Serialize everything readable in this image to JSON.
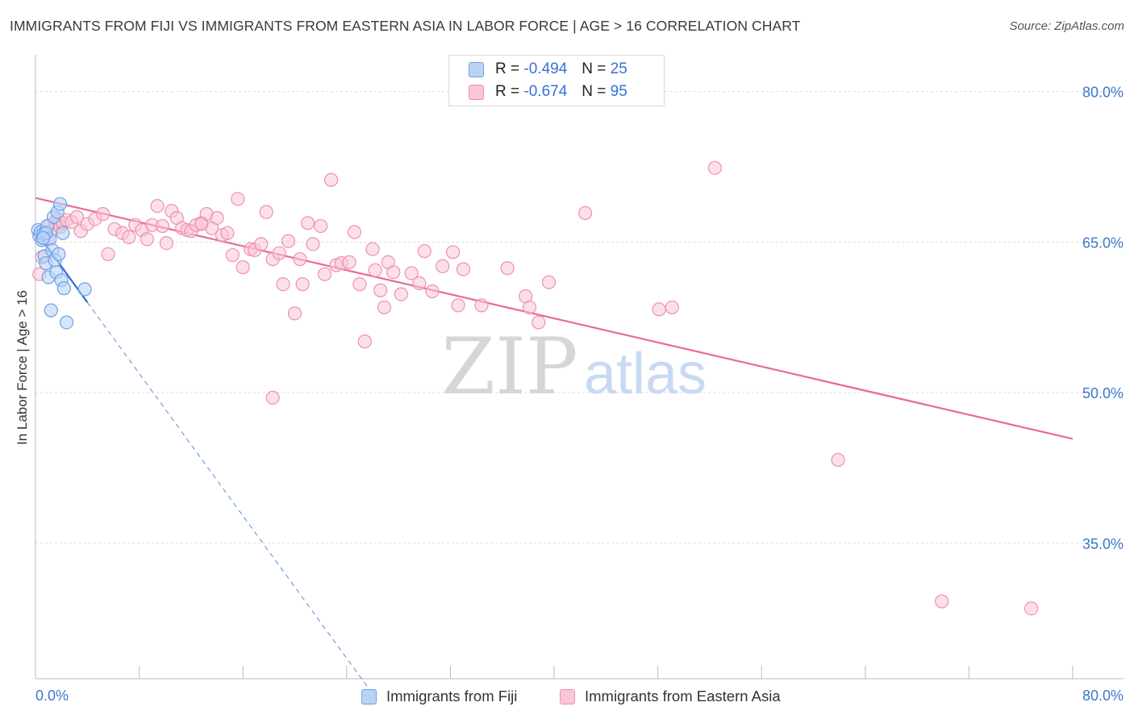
{
  "header": {
    "title": "IMMIGRANTS FROM FIJI VS IMMIGRANTS FROM EASTERN ASIA IN LABOR FORCE | AGE > 16 CORRELATION CHART",
    "source": "Source: ZipAtlas.com"
  },
  "watermark": {
    "zip": "ZIP",
    "atlas": "atlas"
  },
  "legend": {
    "fiji": {
      "r_label": "R =",
      "r_value": "-0.494",
      "n_label": "N =",
      "n_value": "25"
    },
    "eastern_asia": {
      "r_label": "R =",
      "r_value": "-0.674",
      "n_label": "N =",
      "n_value": "95"
    }
  },
  "colors": {
    "fiji_fill": "#b9d3f7",
    "fiji_stroke": "#6d9fe6",
    "fiji_line": "#2f6fd6",
    "ea_fill": "#f9c6d6",
    "ea_stroke": "#ee90ae",
    "ea_line": "#e8699a",
    "axis_label": "#3b78c9",
    "grid": "#dcdcdc"
  },
  "chart_data": {
    "type": "scatter",
    "title": "IMMIGRANTS FROM FIJI VS IMMIGRANTS FROM EASTERN ASIA IN LABOR FORCE | AGE > 16 CORRELATION CHART",
    "xlabel": "",
    "ylabel": "In Labor Force | Age > 16",
    "xlim": [
      0,
      80
    ],
    "ylim": [
      21.5,
      83.5
    ],
    "x_tick_labels": [
      "0.0%",
      "80.0%"
    ],
    "y_ticks": [
      35,
      50,
      65,
      80
    ],
    "y_tick_labels": [
      "35.0%",
      "50.0%",
      "65.0%",
      "80.0%"
    ],
    "grid": true,
    "legend_position": "top-center",
    "series": [
      {
        "name": "Immigrants from Fiji",
        "r": -0.494,
        "n": 25,
        "points": [
          [
            0.2,
            66.2
          ],
          [
            0.3,
            65.6
          ],
          [
            0.4,
            66.0
          ],
          [
            0.5,
            65.2
          ],
          [
            0.6,
            65.8
          ],
          [
            0.7,
            63.6
          ],
          [
            0.8,
            62.9
          ],
          [
            0.9,
            66.6
          ],
          [
            1.0,
            61.5
          ],
          [
            1.1,
            65.3
          ],
          [
            1.2,
            58.2
          ],
          [
            1.3,
            64.2
          ],
          [
            1.4,
            67.5
          ],
          [
            1.5,
            63.2
          ],
          [
            1.6,
            62.0
          ],
          [
            1.7,
            68.0
          ],
          [
            1.8,
            63.8
          ],
          [
            1.9,
            68.8
          ],
          [
            2.0,
            61.2
          ],
          [
            2.1,
            65.9
          ],
          [
            2.2,
            60.4
          ],
          [
            2.4,
            57.0
          ],
          [
            0.8,
            65.9
          ],
          [
            0.6,
            65.4
          ],
          [
            3.8,
            60.3
          ]
        ],
        "trend": {
          "x": [
            0.3,
            4.0
          ],
          "y": [
            65.6,
            59.0
          ]
        },
        "trend_extended": {
          "x": [
            4.0,
            26.0
          ],
          "y": [
            59.0,
            20.0
          ],
          "style": "dashed"
        }
      },
      {
        "name": "Immigrants from Eastern Asia",
        "r": -0.674,
        "n": 95,
        "points": [
          [
            0.3,
            61.8
          ],
          [
            0.5,
            63.5
          ],
          [
            0.7,
            66.0
          ],
          [
            0.9,
            65.3
          ],
          [
            1.1,
            66.7
          ],
          [
            1.3,
            66.2
          ],
          [
            1.5,
            67.0
          ],
          [
            1.7,
            67.3
          ],
          [
            1.9,
            66.5
          ],
          [
            2.1,
            66.9
          ],
          [
            2.4,
            67.2
          ],
          [
            2.8,
            67.0
          ],
          [
            3.2,
            67.5
          ],
          [
            3.5,
            66.1
          ],
          [
            4.0,
            66.8
          ],
          [
            4.6,
            67.3
          ],
          [
            5.2,
            67.8
          ],
          [
            5.6,
            63.8
          ],
          [
            6.1,
            66.3
          ],
          [
            6.7,
            65.9
          ],
          [
            7.2,
            65.5
          ],
          [
            7.7,
            66.7
          ],
          [
            8.2,
            66.2
          ],
          [
            8.6,
            65.3
          ],
          [
            9.0,
            66.7
          ],
          [
            9.4,
            68.6
          ],
          [
            9.8,
            66.6
          ],
          [
            10.1,
            64.9
          ],
          [
            10.5,
            68.1
          ],
          [
            10.9,
            67.4
          ],
          [
            11.3,
            66.4
          ],
          [
            11.7,
            66.2
          ],
          [
            12.0,
            66.1
          ],
          [
            12.4,
            66.7
          ],
          [
            12.8,
            66.9
          ],
          [
            13.2,
            67.8
          ],
          [
            13.6,
            66.4
          ],
          [
            14.0,
            67.4
          ],
          [
            14.4,
            65.7
          ],
          [
            14.8,
            65.9
          ],
          [
            15.2,
            63.7
          ],
          [
            15.6,
            69.3
          ],
          [
            16.0,
            62.5
          ],
          [
            16.6,
            64.3
          ],
          [
            16.9,
            64.2
          ],
          [
            17.4,
            64.8
          ],
          [
            17.8,
            68.0
          ],
          [
            18.3,
            63.3
          ],
          [
            18.8,
            63.9
          ],
          [
            19.1,
            60.8
          ],
          [
            19.5,
            65.1
          ],
          [
            20.0,
            57.9
          ],
          [
            20.4,
            63.3
          ],
          [
            20.6,
            60.8
          ],
          [
            21.0,
            66.9
          ],
          [
            21.4,
            64.8
          ],
          [
            22.0,
            66.6
          ],
          [
            22.3,
            61.8
          ],
          [
            22.8,
            71.2
          ],
          [
            23.2,
            62.7
          ],
          [
            23.6,
            62.9
          ],
          [
            24.2,
            63.0
          ],
          [
            24.6,
            66.0
          ],
          [
            25.0,
            60.8
          ],
          [
            25.4,
            55.1
          ],
          [
            26.0,
            64.3
          ],
          [
            26.2,
            62.2
          ],
          [
            26.6,
            60.2
          ],
          [
            26.9,
            58.5
          ],
          [
            27.2,
            63.0
          ],
          [
            27.6,
            62.0
          ],
          [
            28.2,
            59.8
          ],
          [
            29.0,
            61.9
          ],
          [
            29.6,
            60.9
          ],
          [
            30.0,
            64.1
          ],
          [
            30.6,
            60.1
          ],
          [
            31.4,
            62.6
          ],
          [
            32.2,
            64.0
          ],
          [
            32.6,
            58.7
          ],
          [
            33.0,
            62.3
          ],
          [
            34.4,
            58.7
          ],
          [
            36.4,
            62.4
          ],
          [
            37.8,
            59.6
          ],
          [
            38.1,
            58.5
          ],
          [
            38.8,
            57.0
          ],
          [
            39.6,
            61.0
          ],
          [
            42.4,
            67.9
          ],
          [
            48.1,
            58.3
          ],
          [
            49.1,
            58.5
          ],
          [
            52.4,
            72.4
          ],
          [
            61.9,
            43.3
          ],
          [
            69.9,
            29.2
          ],
          [
            76.8,
            28.5
          ],
          [
            18.3,
            49.5
          ],
          [
            12.8,
            66.8
          ]
        ],
        "trend": {
          "x": [
            0.0,
            80.0
          ],
          "y": [
            69.4,
            45.4
          ]
        }
      }
    ]
  },
  "bottom_legend": {
    "fiji": "Immigrants from Fiji",
    "eastern_asia": "Immigrants from Eastern Asia"
  }
}
